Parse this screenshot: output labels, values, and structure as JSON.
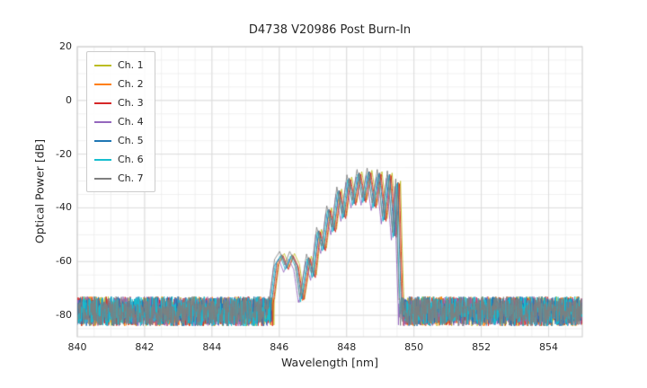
{
  "chart_data": {
    "type": "line",
    "title": "D4738 V20986 Post Burn-In",
    "xlabel": "Wavelength [nm]",
    "ylabel": "Optical Power [dB]",
    "xlim": [
      840,
      855
    ],
    "ylim": [
      -88,
      20
    ],
    "xticks": [
      840,
      842,
      844,
      846,
      848,
      850,
      852,
      854
    ],
    "yticks": [
      20,
      0,
      -20,
      -40,
      -60,
      -80
    ],
    "grid": true,
    "minor_grid": {
      "x_step": 0.5,
      "y_step": 5
    },
    "legend_position": "upper-left",
    "noise_floor_db": {
      "mean": -78.5,
      "spread": 5.5
    },
    "base_profile": [
      [
        -2.65,
        -75
      ],
      [
        -2.5,
        -60
      ],
      [
        -2.35,
        -57
      ],
      [
        -2.2,
        -62
      ],
      [
        -2.05,
        -57
      ],
      [
        -1.9,
        -61
      ],
      [
        -1.75,
        -74
      ],
      [
        -1.55,
        -58
      ],
      [
        -1.4,
        -65
      ],
      [
        -1.25,
        -48
      ],
      [
        -1.1,
        -55
      ],
      [
        -0.95,
        -40
      ],
      [
        -0.8,
        -48
      ],
      [
        -0.65,
        -33
      ],
      [
        -0.5,
        -43
      ],
      [
        -0.35,
        -28.5
      ],
      [
        -0.2,
        -38
      ],
      [
        -0.05,
        -26.5
      ],
      [
        0.1,
        -37
      ],
      [
        0.25,
        -26
      ],
      [
        0.4,
        -39
      ],
      [
        0.55,
        -26.5
      ],
      [
        0.7,
        -44
      ],
      [
        0.85,
        -27
      ],
      [
        1.0,
        -50
      ],
      [
        1.1,
        -30
      ],
      [
        1.15,
        -55
      ],
      [
        1.2,
        -75
      ]
    ],
    "series": [
      {
        "name": "Ch. 1",
        "color": "#bcbd22",
        "center": 848.5,
        "peak_adjust": 0.0
      },
      {
        "name": "Ch. 2",
        "color": "#ff7f0e",
        "center": 848.44,
        "peak_adjust": -0.5
      },
      {
        "name": "Ch. 3",
        "color": "#d62728",
        "center": 848.47,
        "peak_adjust": -1.0
      },
      {
        "name": "Ch. 4",
        "color": "#9467bd",
        "center": 848.33,
        "peak_adjust": -2.0
      },
      {
        "name": "Ch. 5",
        "color": "#1f77b4",
        "center": 848.42,
        "peak_adjust": -0.5
      },
      {
        "name": "Ch. 6",
        "color": "#17becf",
        "center": 848.38,
        "peak_adjust": -1.0
      },
      {
        "name": "Ch. 7",
        "color": "#7f7f7f",
        "center": 848.36,
        "peak_adjust": 0.8
      }
    ]
  }
}
